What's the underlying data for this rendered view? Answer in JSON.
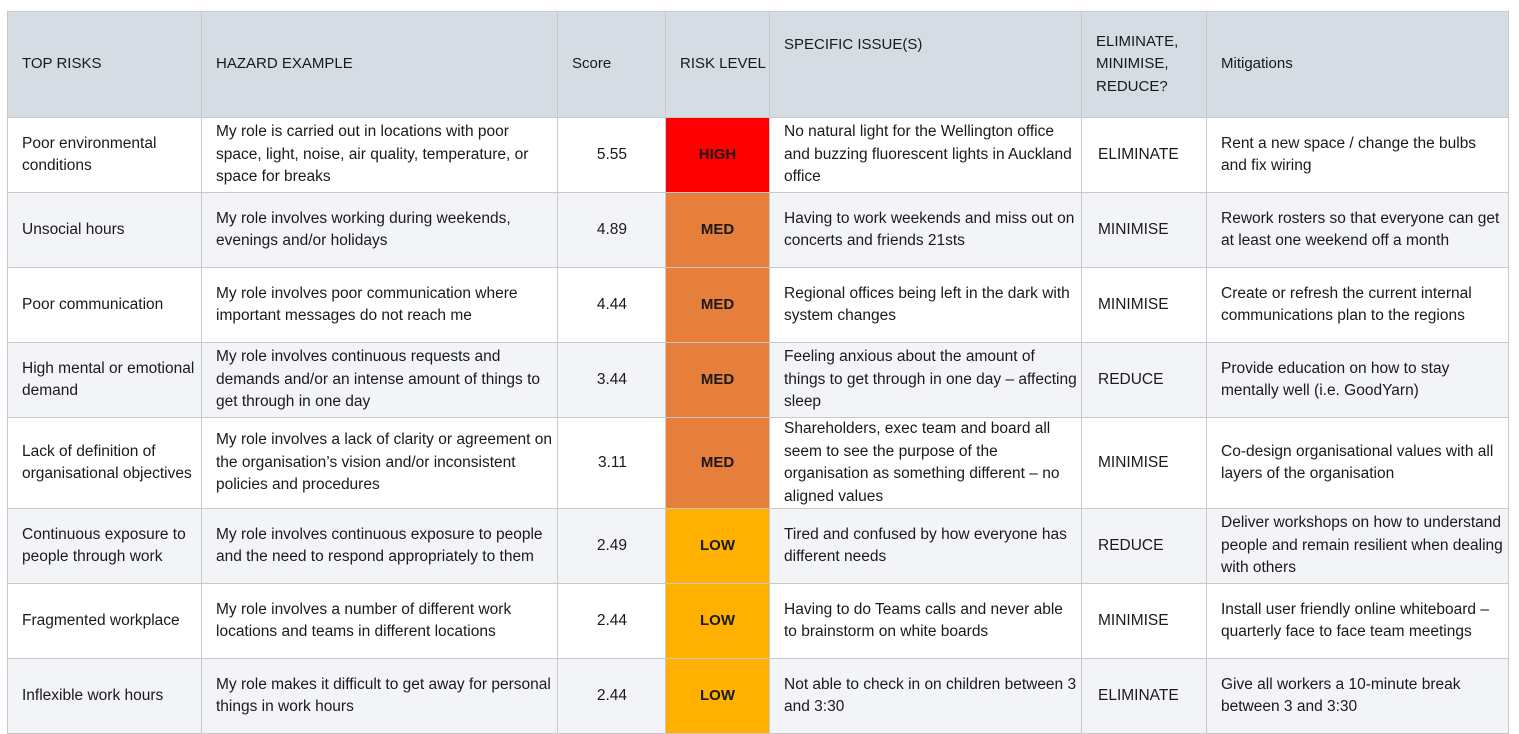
{
  "headers": {
    "top_risks": "TOP RISKS",
    "hazard_example": "HAZARD EXAMPLE",
    "score": "Score",
    "risk_level": "RISK LEVEL",
    "specific_issues": "SPECIFIC ISSUE(S)",
    "action": "ELIMINATE, MINIMISE, REDUCE?",
    "mitigations": "Mitigations"
  },
  "level_colors": {
    "HIGH": "#ff0000",
    "MED": "#e67e3c",
    "LOW": "#ffb000"
  },
  "rows": [
    {
      "risk": "Poor environmental conditions",
      "hazard": "My role is carried out in locations with poor space, light, noise, air quality, temperature, or space for breaks",
      "score": "5.55",
      "level": "HIGH",
      "issue": "No natural light for the Wellington office  and buzzing fluorescent lights in Auckland office",
      "action": "ELIMINATE",
      "mitigation": "Rent a new space / change the bulbs and fix wiring"
    },
    {
      "risk": "Unsocial hours",
      "hazard": "My role involves working during weekends, evenings and/or holidays",
      "score": "4.89",
      "level": "MED",
      "issue": "Having to work weekends and miss out on concerts and friends 21sts",
      "action": "MINIMISE",
      "mitigation": "Rework rosters so that everyone can get at least one weekend off a month"
    },
    {
      "risk": "Poor communication",
      "hazard": "My role involves poor communication where important messages do not reach me",
      "score": "4.44",
      "level": "MED",
      "issue": "Regional offices being left in the dark with system changes",
      "action": "MINIMISE",
      "mitigation": "Create or refresh the current internal communications plan to the regions"
    },
    {
      "risk": "High mental or emotional demand",
      "hazard": "My role involves continuous requests and demands and/or an intense amount of things to get through in one day",
      "score": "3.44",
      "level": "MED",
      "issue": "Feeling anxious about the amount of things to get through in one day – affecting sleep",
      "action": "REDUCE",
      "mitigation": "Provide education on how to stay mentally well (i.e. GoodYarn)"
    },
    {
      "risk": "Lack of definition of organisational objectives",
      "hazard": "My role involves a lack of clarity or agreement on the organisation’s vision and/or inconsistent policies and procedures",
      "score": "3.11",
      "level": "MED",
      "issue": "Shareholders, exec team and board all seem to see the purpose of the organisation as something different – no aligned values",
      "action": "MINIMISE",
      "mitigation": "Co-design organisational values with all layers of the organisation"
    },
    {
      "risk": "Continuous exposure to people through work",
      "hazard": "My role involves continuous exposure to people and the need to respond appropriately to them",
      "score": "2.49",
      "level": "LOW",
      "issue": "Tired and confused by how everyone has different needs",
      "action": "REDUCE",
      "mitigation": "Deliver workshops on how to understand people and remain resilient when dealing with others"
    },
    {
      "risk": "Fragmented workplace",
      "hazard": "My role involves a number of different work locations and teams in different locations",
      "score": "2.44",
      "level": "LOW",
      "issue": "Having to do Teams calls and never able to brainstorm on white boards",
      "action": "MINIMISE",
      "mitigation": "Install user friendly online whiteboard – quarterly face to face team meetings"
    },
    {
      "risk": "Inflexible work hours",
      "hazard": "My role makes it difficult to get away for personal things in work hours",
      "score": "2.44",
      "level": "LOW",
      "issue": "Not able to check in on children between 3 and 3:30",
      "action": "ELIMINATE",
      "mitigation": "Give all workers a 10-minute break between 3 and 3:30"
    }
  ]
}
